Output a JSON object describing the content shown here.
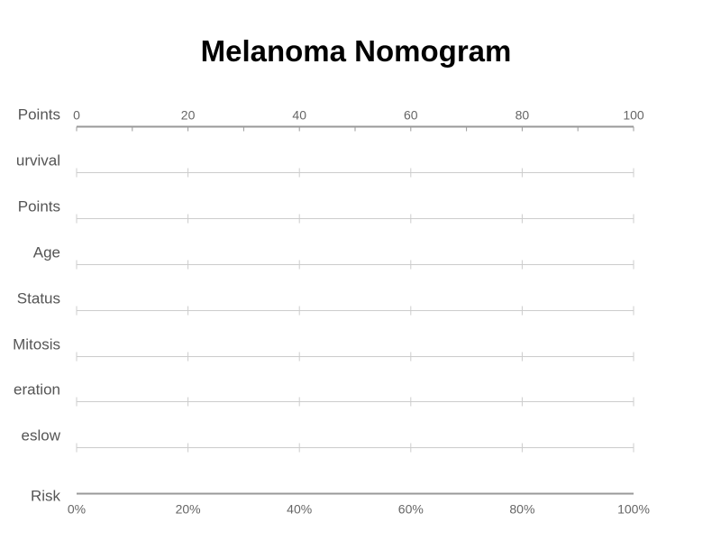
{
  "chart_data": {
    "type": "nomogram",
    "title": "Melanoma Nomogram",
    "rows": [
      "Points",
      "urvival",
      "Points",
      "Age",
      "Status",
      "Mitosis",
      "eration",
      "eslow",
      "Risk"
    ],
    "points_axis": {
      "min": 0,
      "max": 100,
      "major_ticks": [
        0,
        20,
        40,
        60,
        80,
        100
      ],
      "minor_ticks": [
        10,
        30,
        50,
        70,
        90
      ]
    },
    "risk_axis": {
      "min": 0,
      "max": 100,
      "unit": "%",
      "ticks": [
        "0%",
        "20%",
        "40%",
        "60%",
        "80%",
        "100%"
      ]
    },
    "colors": {
      "axis": "#999999",
      "row_line": "#cccccc",
      "label": "#555555",
      "tick_label": "#666666"
    }
  }
}
